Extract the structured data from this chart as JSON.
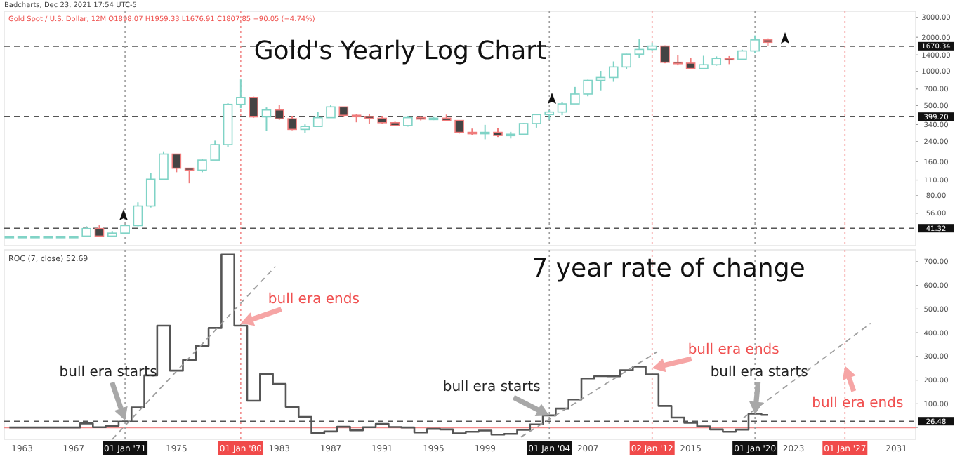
{
  "chart_data": [
    {
      "type": "candlestick",
      "title": "Gold's Yearly Log Chart",
      "subtitle": "Gold Spot / U.S. Dollar, 12M  O1898.07 H1959.33 L1676.91 C1807.85 −90.05 (−4.74%)",
      "annotations": [
        "Badcharts, Dec 23, 2021 17:54 UTC-5"
      ],
      "x": [
        1962,
        1963,
        1964,
        1965,
        1966,
        1967,
        1968,
        1969,
        1970,
        1971,
        1972,
        1973,
        1974,
        1975,
        1976,
        1977,
        1978,
        1979,
        1980,
        1981,
        1982,
        1983,
        1984,
        1985,
        1986,
        1987,
        1988,
        1989,
        1990,
        1991,
        1992,
        1993,
        1994,
        1995,
        1996,
        1997,
        1998,
        1999,
        2000,
        2001,
        2002,
        2003,
        2004,
        2005,
        2006,
        2007,
        2008,
        2009,
        2010,
        2011,
        2012,
        2013,
        2014,
        2015,
        2016,
        2017,
        2018,
        2019,
        2020,
        2021
      ],
      "ohlc": [
        [
          35,
          35,
          35,
          35
        ],
        [
          35,
          35,
          35,
          35
        ],
        [
          35,
          35,
          35,
          35
        ],
        [
          35,
          35,
          35,
          35
        ],
        [
          35,
          35,
          35,
          35
        ],
        [
          35,
          35,
          35,
          35
        ],
        [
          35.2,
          43,
          35,
          41
        ],
        [
          41,
          43.8,
          35,
          35.2
        ],
        [
          35.2,
          39,
          34.8,
          37.4
        ],
        [
          37.4,
          44,
          37,
          43.6
        ],
        [
          43.6,
          70,
          43,
          64.9
        ],
        [
          64.9,
          127,
          63,
          112
        ],
        [
          112,
          197,
          112,
          186.5
        ],
        [
          186.5,
          186.5,
          129,
          140
        ],
        [
          140,
          140,
          103,
          134.5
        ],
        [
          134.5,
          168,
          129,
          165
        ],
        [
          165,
          245,
          165,
          226
        ],
        [
          226,
          524,
          216,
          512
        ],
        [
          512,
          850,
          474,
          589.5
        ],
        [
          589.5,
          599,
          391,
          397.5
        ],
        [
          397.5,
          481,
          297,
          456.9
        ],
        [
          456.9,
          509,
          374,
          382.4
        ],
        [
          382.4,
          406,
          303,
          308
        ],
        [
          308,
          341,
          284,
          327
        ],
        [
          327,
          442,
          326,
          390.9
        ],
        [
          390.9,
          502,
          390,
          486.5
        ],
        [
          486.5,
          486.5,
          395,
          410.2
        ],
        [
          410.2,
          418,
          356,
          401
        ],
        [
          401,
          424,
          345,
          386
        ],
        [
          386,
          403,
          344,
          353
        ],
        [
          353,
          360,
          330,
          333
        ],
        [
          333,
          406,
          326,
          391
        ],
        [
          391,
          397,
          370,
          383
        ],
        [
          383,
          396,
          372,
          387
        ],
        [
          387,
          416,
          367,
          369
        ],
        [
          369,
          369,
          283,
          290
        ],
        [
          290,
          313,
          273,
          288
        ],
        [
          288,
          338,
          252,
          290
        ],
        [
          290,
          317,
          264,
          272
        ],
        [
          272,
          293,
          256,
          279
        ],
        [
          279,
          350,
          277,
          347
        ],
        [
          347,
          417,
          319,
          416
        ],
        [
          416,
          455,
          375,
          438
        ],
        [
          438,
          537,
          411,
          517
        ],
        [
          517,
          730,
          517,
          632
        ],
        [
          632,
          845,
          603,
          834
        ],
        [
          834,
          1011,
          681,
          884
        ],
        [
          884,
          1226,
          810,
          1096
        ],
        [
          1096,
          1431,
          1044,
          1421
        ],
        [
          1421,
          1920,
          1308,
          1565
        ],
        [
          1565,
          1796,
          1527,
          1675
        ],
        [
          1675,
          1696,
          1181,
          1205
        ],
        [
          1205,
          1392,
          1132,
          1184
        ],
        [
          1184,
          1307,
          1046,
          1061
        ],
        [
          1061,
          1375,
          1046,
          1146
        ],
        [
          1146,
          1357,
          1124,
          1303
        ],
        [
          1303,
          1366,
          1160,
          1282
        ],
        [
          1282,
          1557,
          1266,
          1517
        ],
        [
          1517,
          2075,
          1451,
          1898
        ],
        [
          1898.07,
          1959.33,
          1676.91,
          1807.85
        ]
      ],
      "log": true,
      "xlim": [
        1961.6,
        2032.5
      ],
      "ylim": [
        29,
        3400
      ],
      "yticks": [
        {
          "value": 56,
          "label": "56.00"
        },
        {
          "value": 80,
          "label": "80.00"
        },
        {
          "value": 110,
          "label": "110.00"
        },
        {
          "value": 160,
          "label": "160.00"
        },
        {
          "value": 240,
          "label": "240.00"
        },
        {
          "value": 340,
          "label": "340.00"
        },
        {
          "value": 500,
          "label": "500.00"
        },
        {
          "value": 700,
          "label": "700.00"
        },
        {
          "value": 1000,
          "label": "1000.00"
        },
        {
          "value": 1400,
          "label": "1400.00"
        },
        {
          "value": 2000,
          "label": "2000.00"
        },
        {
          "value": 3000,
          "label": "3000.00"
        }
      ],
      "tick_labels": "y",
      "ref_lines": [
        {
          "axis": "y",
          "value": 41.32,
          "label": "41.32",
          "color": "#555555",
          "line_style": "dashed"
        },
        {
          "axis": "y",
          "value": 399.2,
          "label": "399.20",
          "color": "#555555",
          "line_style": "dashed"
        },
        {
          "axis": "y",
          "value": 1670.34,
          "label": "1670.34",
          "color": "#555555",
          "line_style": "dashed"
        },
        {
          "axis": "x",
          "value": 1971,
          "color": "#9e9e9e",
          "line_style": "dotted"
        },
        {
          "axis": "x",
          "value": 1980,
          "color": "#f28b8b",
          "line_style": "dotted"
        },
        {
          "axis": "x",
          "value": 2004,
          "color": "#9e9e9e",
          "line_style": "dotted"
        },
        {
          "axis": "x",
          "value": 2012,
          "color": "#f28b8b",
          "line_style": "dotted"
        },
        {
          "axis": "x",
          "value": 2020,
          "color": "#9e9e9e",
          "line_style": "dotted"
        },
        {
          "axis": "x",
          "value": 2027,
          "color": "#f28b8b",
          "line_style": "dotted"
        }
      ]
    },
    {
      "type": "step",
      "title": "7 year rate of change",
      "annotations": [
        "ROC (7, close) 52.69",
        {
          "text": "bull era starts",
          "x": 1971,
          "y": 30
        },
        {
          "text": "bull era ends",
          "x": 1980,
          "y": 440
        },
        {
          "text": "bull era starts",
          "x": 2004,
          "y": 50
        },
        {
          "text": "bull era ends",
          "x": 2012,
          "y": 250
        },
        {
          "text": "bull era starts",
          "x": 2020,
          "y": 55
        },
        {
          "text": "bull era ends",
          "x": 2027,
          "y": 260
        }
      ],
      "x": [
        1962,
        1963,
        1964,
        1965,
        1966,
        1967,
        1968,
        1969,
        1970,
        1971,
        1972,
        1973,
        1974,
        1975,
        1976,
        1977,
        1978,
        1979,
        1980,
        1981,
        1982,
        1983,
        1984,
        1985,
        1986,
        1987,
        1988,
        1989,
        1990,
        1991,
        1992,
        1993,
        1994,
        1995,
        1996,
        1997,
        1998,
        1999,
        2000,
        2001,
        2002,
        2003,
        2004,
        2005,
        2006,
        2007,
        2008,
        2009,
        2010,
        2011,
        2012,
        2013,
        2014,
        2015,
        2016,
        2017,
        2018,
        2019,
        2020,
        2021
      ],
      "series": [
        {
          "color": "#555555",
          "values": [
            0,
            0,
            0,
            0,
            0,
            0,
            17,
            1,
            7,
            25,
            85,
            220,
            430,
            240,
            285,
            345,
            420,
            730,
            430,
            113,
            226,
            184,
            87,
            45,
            -24,
            -17,
            3,
            -12,
            1,
            15,
            2,
            0,
            -21,
            -6,
            -8,
            -25,
            -18,
            -13,
            -30,
            -27,
            -10,
            13,
            51,
            80,
            118,
            207,
            217,
            216,
            242,
            257,
            224,
            91,
            42,
            20,
            5,
            -8,
            -18,
            -9,
            58,
            53
          ]
        },
        {
          "type": "line",
          "color": "#9e9e9e",
          "line_style": "dashed",
          "x": [
            1970,
            1982.7
          ],
          "values": [
            -50,
            680
          ]
        },
        {
          "type": "line",
          "color": "#9e9e9e",
          "line_style": "dashed",
          "x": [
            2001.8,
            2012.4
          ],
          "values": [
            -40,
            320
          ]
        },
        {
          "type": "line",
          "color": "#9e9e9e",
          "line_style": "dashed",
          "x": [
            2019.1,
            2029
          ],
          "values": [
            40,
            440
          ]
        }
      ],
      "xlim": [
        1961.6,
        2032.5
      ],
      "ylim": [
        -50,
        750
      ],
      "xticks": [
        1963,
        1967,
        1975,
        1983,
        1987,
        1991,
        1995,
        1999,
        2007,
        2015,
        2023,
        2031
      ],
      "yticks": [
        {
          "value": 0,
          "label": null
        },
        {
          "value": 100,
          "label": "100.00"
        },
        {
          "value": 200,
          "label": "200.00"
        },
        {
          "value": 300,
          "label": "300.00"
        },
        {
          "value": 400,
          "label": "400.00"
        },
        {
          "value": 500,
          "label": "500.00"
        },
        {
          "value": 600,
          "label": "600.00"
        },
        {
          "value": 700,
          "label": "700.00"
        }
      ],
      "ref_lines": [
        {
          "axis": "y",
          "value": 0,
          "color": "#f28b8b",
          "line_style": "solid"
        },
        {
          "axis": "y",
          "value": 26.48,
          "label": "26.48",
          "color": "#555555",
          "line_style": "dashed"
        },
        {
          "axis": "x",
          "value": 1971,
          "label": "01 Jan '71",
          "color": "#9e9e9e",
          "line_style": "dotted"
        },
        {
          "axis": "x",
          "value": 1980,
          "label": "01 Jan '80",
          "color": "#f28b8b",
          "line_style": "dotted"
        },
        {
          "axis": "x",
          "value": 2004,
          "label": "01 Jan '04",
          "color": "#9e9e9e",
          "line_style": "dotted"
        },
        {
          "axis": "x",
          "value": 2012,
          "label": "02 Jan '12",
          "color": "#f28b8b",
          "line_style": "dotted"
        },
        {
          "axis": "x",
          "value": 2020,
          "label": "01 Jan '20",
          "color": "#9e9e9e",
          "line_style": "dotted"
        },
        {
          "axis": "x",
          "value": 2027,
          "label": "01 Jan '27",
          "color": "#f28b8b",
          "line_style": "dotted"
        }
      ]
    }
  ]
}
